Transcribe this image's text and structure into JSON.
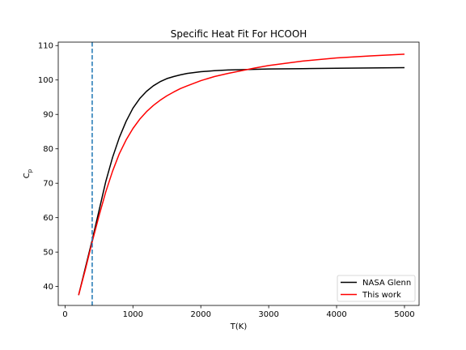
{
  "chart_data": {
    "type": "line",
    "title": "Specific Heat Fit For HCOOH",
    "xlabel": "T(K)",
    "ylabel": "Cp",
    "ylabel_main": "C",
    "ylabel_sub": "p",
    "xlim": [
      -100,
      5215
    ],
    "ylim": [
      34.5,
      111
    ],
    "xticks": [
      0,
      1000,
      2000,
      3000,
      4000,
      5000
    ],
    "yticks": [
      40,
      50,
      60,
      70,
      80,
      90,
      100,
      110
    ],
    "vline_x": 400,
    "vline_color": "#1f77b4",
    "legend_position": "lower right",
    "series": [
      {
        "name": "NASA Glenn",
        "color": "#000000",
        "x": [
          200,
          300,
          400,
          500,
          600,
          700,
          800,
          900,
          1000,
          1100,
          1200,
          1300,
          1400,
          1500,
          1600,
          1700,
          1800,
          2000,
          2200,
          2400,
          2600,
          3000,
          3500,
          4000,
          4500,
          5000
        ],
        "y": [
          37.5,
          45.5,
          53.5,
          62.0,
          70.5,
          77.5,
          83.3,
          88.0,
          91.8,
          94.6,
          96.7,
          98.3,
          99.5,
          100.4,
          101.0,
          101.5,
          101.9,
          102.4,
          102.7,
          102.9,
          103.0,
          103.2,
          103.3,
          103.4,
          103.5,
          103.6
        ]
      },
      {
        "name": "This work",
        "color": "#ff0000",
        "x": [
          200,
          300,
          400,
          500,
          600,
          700,
          800,
          900,
          1000,
          1100,
          1200,
          1300,
          1400,
          1500,
          1600,
          1700,
          1800,
          2000,
          2200,
          2400,
          2600,
          2800,
          3000,
          3500,
          4000,
          4500,
          5000
        ],
        "y": [
          37.5,
          45.0,
          53.0,
          60.5,
          67.5,
          73.5,
          78.6,
          82.6,
          85.9,
          88.6,
          90.8,
          92.6,
          94.1,
          95.4,
          96.5,
          97.5,
          98.3,
          99.8,
          101.0,
          101.9,
          102.7,
          103.5,
          104.2,
          105.5,
          106.4,
          107.0,
          107.5
        ]
      }
    ]
  }
}
